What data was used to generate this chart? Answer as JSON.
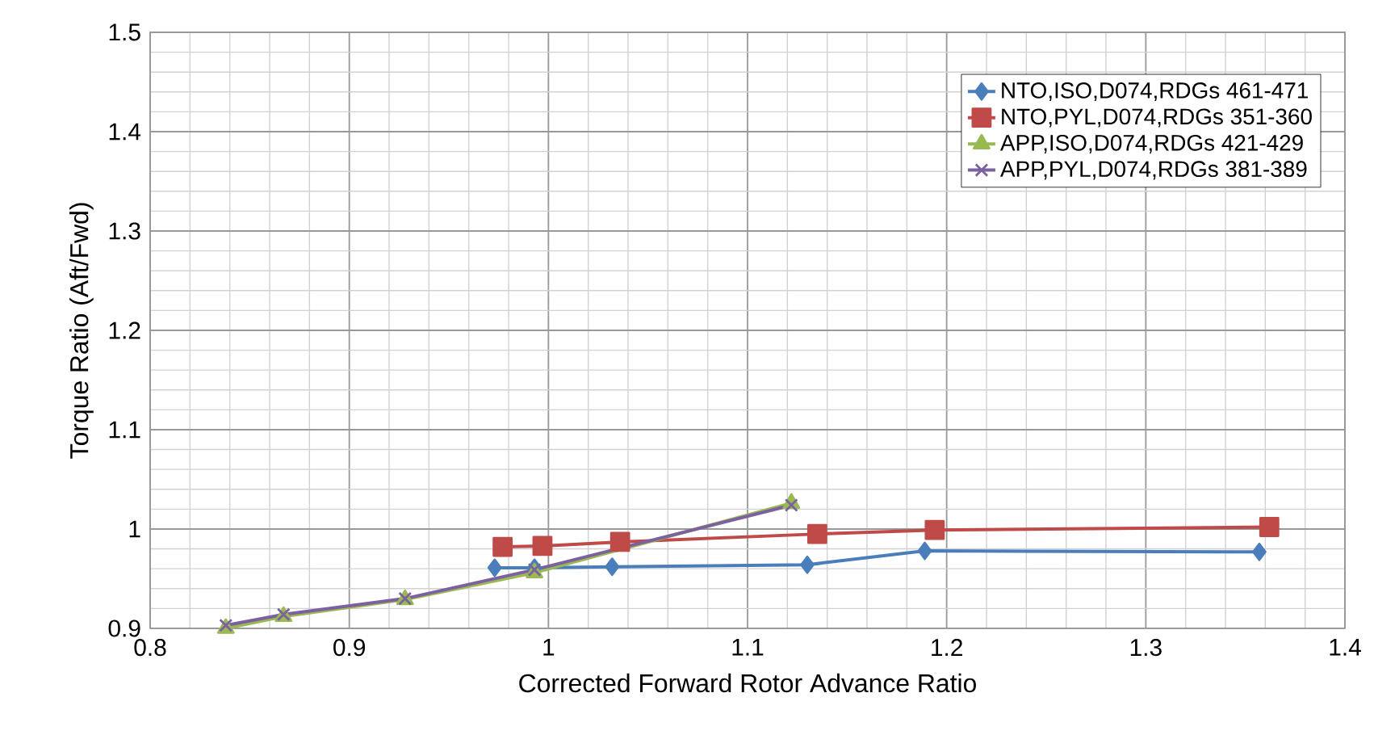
{
  "chart_data": {
    "type": "line",
    "xlabel": "Corrected Forward Rotor Advance Ratio",
    "ylabel": "Torque Ratio (Aft/Fwd)",
    "xlim": [
      0.8,
      1.4
    ],
    "xticks": [
      0.8,
      0.9,
      1,
      1.1,
      1.2,
      1.3,
      1.4
    ],
    "ylim": [
      0.9,
      1.5
    ],
    "yticks": [
      0.9,
      1,
      1.1,
      1.2,
      1.3,
      1.4,
      1.5
    ],
    "grid": true,
    "legend": "top right",
    "series": [
      {
        "name": "NTO,ISO,D074,RDGs 461-471",
        "color": "#4a7ebb",
        "marker": "diamond",
        "x": [
          0.973,
          0.993,
          1.032,
          1.13,
          1.189,
          1.357
        ],
        "values": [
          0.961,
          0.961,
          0.962,
          0.964,
          0.978,
          0.977
        ]
      },
      {
        "name": "NTO,PYL,D074,RDGs 351-360",
        "color": "#be4b48",
        "marker": "square",
        "x": [
          0.977,
          0.997,
          1.036,
          1.135,
          1.194,
          1.362
        ],
        "values": [
          0.982,
          0.983,
          0.987,
          0.995,
          0.999,
          1.002
        ]
      },
      {
        "name": "APP,ISO,D074,RDGs 421-429",
        "color": "#98b954",
        "marker": "triangle",
        "x": [
          0.838,
          0.867,
          0.928,
          0.993,
          1.122
        ],
        "values": [
          0.9,
          0.912,
          0.929,
          0.956,
          1.026
        ]
      },
      {
        "name": "APP,PYL,D074,RDGs 381-389",
        "color": "#7d60a0",
        "marker": "cross",
        "x": [
          0.838,
          0.867,
          0.928,
          0.993,
          1.122
        ],
        "values": [
          0.903,
          0.914,
          0.93,
          0.959,
          1.024
        ]
      }
    ]
  }
}
